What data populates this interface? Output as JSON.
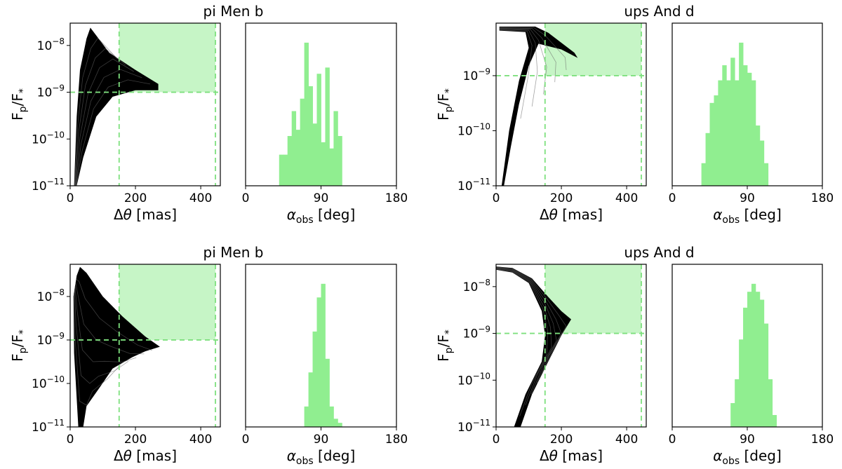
{
  "figure": {
    "panels": [
      {
        "id": "p0",
        "title": "pi Men b"
      },
      {
        "id": "p1",
        "title": "ups And d"
      },
      {
        "id": "p2",
        "title": "pi Men b"
      },
      {
        "id": "p3",
        "title": "ups And d"
      }
    ],
    "flux_axis": {
      "label_main": "F",
      "label_sub_p": "p",
      "label_slash": "/F",
      "label_sub_star": "*"
    },
    "sep_axis": {
      "label_prefix": "Δ",
      "label_theta": "θ",
      "label_unit": " [mas]"
    },
    "phase_axis": {
      "label_alpha": "α",
      "label_sub": "obs",
      "label_unit": " [deg]"
    },
    "colors": {
      "accent_green": "#90ee90",
      "zone_green": "#c6f5c6",
      "dash_green": "#7ee07e",
      "tracks": "#000000"
    }
  },
  "chart_data": [
    {
      "type": "area",
      "panel": "pi Men b (top row)",
      "title": "pi Men b",
      "xlabel": "Δθ [mas]",
      "ylabel": "Fp/F*",
      "xlim": [
        0,
        460
      ],
      "ylim": [
        1e-11,
        3e-08
      ],
      "yscale": "log",
      "xticks": [
        "0",
        "200",
        "400"
      ],
      "yticks": [
        "10^-8",
        "10^-9",
        "10^-10",
        "10^-11"
      ],
      "detectable_region": {
        "x_min": 150,
        "x_max": 445,
        "y_min": 1e-09
      },
      "envelope": {
        "upper": [
          [
            12,
            1e-11
          ],
          [
            20,
            3e-10
          ],
          [
            30,
            3e-09
          ],
          [
            50,
            1.4e-08
          ],
          [
            62,
            2.4e-08
          ],
          [
            120,
            7e-09
          ],
          [
            200,
            3e-09
          ],
          [
            270,
            1.5e-09
          ]
        ],
        "lower": [
          [
            270,
            1.1e-09
          ],
          [
            200,
            1.1e-09
          ],
          [
            130,
            8e-10
          ],
          [
            80,
            3e-10
          ],
          [
            40,
            4e-11
          ],
          [
            20,
            1e-11
          ]
        ]
      }
    },
    {
      "type": "bar",
      "panel": "pi Men b (top row) histogram",
      "xlabel": "α_obs [deg]",
      "xlim": [
        0,
        180
      ],
      "xticks": [
        "0",
        "90",
        "180"
      ],
      "bin_edges": [
        40,
        45,
        50,
        55,
        60,
        65,
        70,
        75,
        80,
        85,
        90,
        95,
        100,
        105,
        110,
        115
      ],
      "values": [
        5,
        5,
        8,
        12,
        9,
        14,
        23,
        16,
        10,
        18,
        7,
        19,
        6,
        12,
        8
      ]
    },
    {
      "type": "area",
      "panel": "ups And d (top row)",
      "title": "ups And d",
      "xlabel": "Δθ [mas]",
      "ylabel": "Fp/F*",
      "xlim": [
        0,
        460
      ],
      "ylim": [
        1e-11,
        9e-09
      ],
      "yscale": "log",
      "xticks": [
        "0",
        "200",
        "400"
      ],
      "yticks": [
        "10^-9",
        "10^-10",
        "10^-11"
      ],
      "detectable_region": {
        "x_min": 150,
        "x_max": 445,
        "y_min": 1e-09
      },
      "envelope": {
        "upper": [
          [
            10,
            7.8e-09
          ],
          [
            120,
            7.8e-09
          ],
          [
            160,
            6e-09
          ],
          [
            240,
            2.6e-09
          ],
          [
            250,
            2.1e-09
          ]
        ],
        "lower": [
          [
            250,
            2.1e-09
          ],
          [
            200,
            3e-09
          ],
          [
            130,
            3.8e-09
          ],
          [
            100,
            1.5e-09
          ],
          [
            70,
            3e-10
          ],
          [
            45,
            5e-11
          ],
          [
            24,
            1e-11
          ],
          [
            17,
            1e-11
          ],
          [
            40,
            1e-10
          ],
          [
            70,
            8e-10
          ],
          [
            100,
            3.2e-09
          ],
          [
            90,
            6.2e-09
          ],
          [
            10,
            6.6e-09
          ]
        ]
      }
    },
    {
      "type": "bar",
      "panel": "ups And d (top row) histogram",
      "xlabel": "α_obs [deg]",
      "xlim": [
        0,
        180
      ],
      "xticks": [
        "0",
        "90",
        "180"
      ],
      "bin_edges": [
        35,
        40,
        45,
        50,
        55,
        60,
        65,
        70,
        75,
        80,
        85,
        90,
        95,
        100,
        105,
        110,
        115
      ],
      "values": [
        3,
        7,
        11,
        12,
        14,
        16,
        14,
        17,
        14,
        19,
        16,
        15,
        14,
        8,
        6,
        3
      ]
    },
    {
      "type": "area",
      "panel": "pi Men b (bottom row)",
      "title": "pi Men b",
      "xlabel": "Δθ [mas]",
      "ylabel": "Fp/F*",
      "xlim": [
        0,
        460
      ],
      "ylim": [
        1e-11,
        5.5e-08
      ],
      "yscale": "log",
      "xticks": [
        "0",
        "200",
        "400"
      ],
      "yticks": [
        "10^-8",
        "10^-9",
        "10^-10",
        "10^-11"
      ],
      "detectable_region": {
        "x_min": 150,
        "x_max": 445,
        "y_min": 1e-09
      },
      "envelope": {
        "upper": [
          [
            20,
            3e-08
          ],
          [
            30,
            4.8e-08
          ],
          [
            50,
            3.5e-08
          ],
          [
            100,
            1e-08
          ],
          [
            160,
            3.5e-09
          ],
          [
            230,
            1.2e-09
          ],
          [
            275,
            7e-10
          ]
        ],
        "lower": [
          [
            275,
            7e-10
          ],
          [
            230,
            5.5e-10
          ],
          [
            190,
            4e-10
          ],
          [
            130,
            2.2e-10
          ],
          [
            90,
            8e-11
          ],
          [
            50,
            3e-11
          ],
          [
            40,
            1e-11
          ],
          [
            25,
            1e-11
          ],
          [
            12,
            5e-10
          ],
          [
            10,
            1e-08
          ]
        ]
      }
    },
    {
      "type": "bar",
      "panel": "pi Men b (bottom row) histogram",
      "xlabel": "α_obs [deg]",
      "xlim": [
        0,
        180
      ],
      "xticks": [
        "0",
        "90",
        "180"
      ],
      "bin_edges": [
        70,
        75,
        80,
        85,
        90,
        95,
        100,
        105,
        110,
        115
      ],
      "values": [
        3,
        8,
        14,
        19,
        21,
        10,
        3,
        1.2,
        0.6
      ]
    },
    {
      "type": "area",
      "panel": "ups And d (bottom row)",
      "title": "ups And d",
      "xlabel": "Δθ [mas]",
      "ylabel": "Fp/F*",
      "xlim": [
        0,
        460
      ],
      "ylim": [
        1e-11,
        3e-08
      ],
      "yscale": "log",
      "xticks": [
        "0",
        "200",
        "400"
      ],
      "yticks": [
        "10^-8",
        "10^-9",
        "10^-10",
        "10^-11"
      ],
      "detectable_region": {
        "x_min": 150,
        "x_max": 445,
        "y_min": 1e-09
      },
      "envelope": {
        "upper": [
          [
            0,
            2.7e-08
          ],
          [
            50,
            2.5e-08
          ],
          [
            110,
            1.5e-08
          ],
          [
            160,
            6e-09
          ],
          [
            200,
            3e-09
          ],
          [
            230,
            2e-09
          ],
          [
            200,
            9e-10
          ],
          [
            160,
            2.5e-10
          ],
          [
            110,
            5e-11
          ],
          [
            75,
            1e-11
          ]
        ],
        "lower": [
          [
            55,
            1e-11
          ],
          [
            90,
            5e-11
          ],
          [
            140,
            2.5e-10
          ],
          [
            150,
            9e-10
          ],
          [
            140,
            3e-09
          ],
          [
            100,
            1.2e-08
          ],
          [
            50,
            2e-08
          ],
          [
            0,
            2.3e-08
          ]
        ]
      }
    },
    {
      "type": "bar",
      "panel": "ups And d (bottom row) histogram",
      "xlabel": "α_obs [deg]",
      "xlim": [
        0,
        180
      ],
      "xticks": [
        "0",
        "90",
        "180"
      ],
      "bin_edges": [
        70,
        75,
        80,
        85,
        90,
        95,
        100,
        105,
        110,
        115,
        120,
        125
      ],
      "values": [
        3,
        6,
        11,
        15,
        17,
        18,
        17,
        16,
        13,
        6,
        1.5
      ]
    }
  ]
}
